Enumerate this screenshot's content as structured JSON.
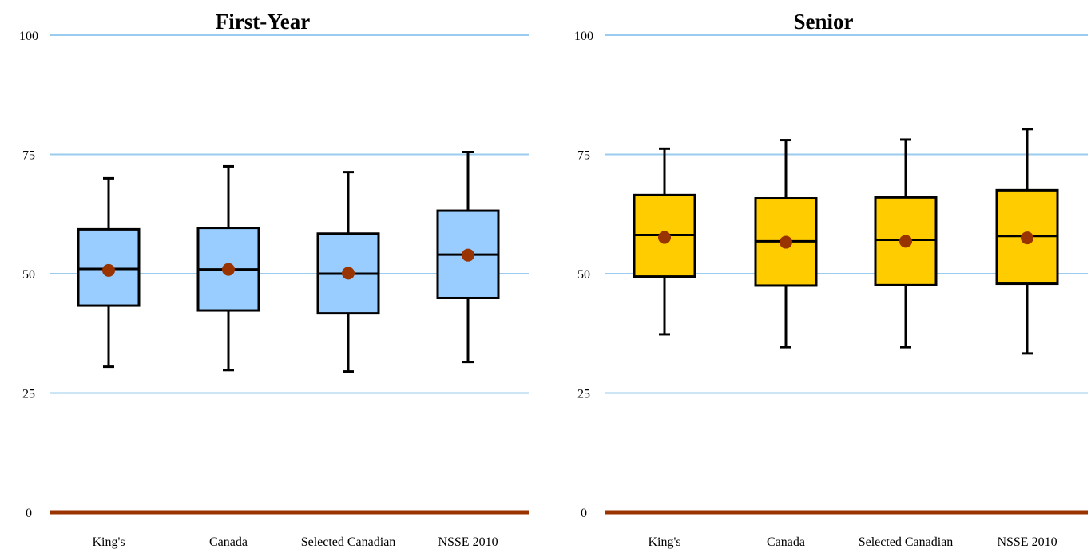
{
  "chart_data": [
    {
      "type": "box",
      "title": "First-Year",
      "categories": [
        "King's",
        "Canada",
        "Selected Canadian",
        "NSSE 2010"
      ],
      "ylim": [
        0,
        100
      ],
      "yticks": [
        0,
        25,
        50,
        75,
        100
      ],
      "grid": true,
      "colors": {
        "box_fill": "#99ccff",
        "box_stroke": "#000000",
        "mean_marker": "#993300",
        "gridline": "#99ccee",
        "baseline": "#993300"
      },
      "boxes": [
        {
          "category": "King's",
          "whisker_low": 30.5,
          "q1": 43.3,
          "median": 51.0,
          "q3": 59.3,
          "whisker_high": 70.0,
          "mean": 50.7
        },
        {
          "category": "Canada",
          "whisker_low": 29.8,
          "q1": 42.3,
          "median": 50.9,
          "q3": 59.6,
          "whisker_high": 72.5,
          "mean": 50.9
        },
        {
          "category": "Selected Canadian",
          "whisker_low": 29.5,
          "q1": 41.7,
          "median": 50.0,
          "q3": 58.4,
          "whisker_high": 71.3,
          "mean": 50.1
        },
        {
          "category": "NSSE 2010",
          "whisker_low": 31.5,
          "q1": 44.9,
          "median": 54.0,
          "q3": 63.2,
          "whisker_high": 75.5,
          "mean": 53.9
        }
      ]
    },
    {
      "type": "box",
      "title": "Senior",
      "categories": [
        "King's",
        "Canada",
        "Selected Canadian",
        "NSSE 2010"
      ],
      "ylim": [
        0,
        100
      ],
      "yticks": [
        0,
        25,
        50,
        75,
        100
      ],
      "grid": true,
      "colors": {
        "box_fill": "#ffcc00",
        "box_stroke": "#000000",
        "mean_marker": "#993300",
        "gridline": "#99ccee",
        "baseline": "#993300"
      },
      "boxes": [
        {
          "category": "King's",
          "whisker_low": 37.3,
          "q1": 49.4,
          "median": 58.1,
          "q3": 66.5,
          "whisker_high": 76.2,
          "mean": 57.6
        },
        {
          "category": "Canada",
          "whisker_low": 34.6,
          "q1": 47.5,
          "median": 56.8,
          "q3": 65.8,
          "whisker_high": 78.0,
          "mean": 56.6
        },
        {
          "category": "Selected Canadian",
          "whisker_low": 34.6,
          "q1": 47.6,
          "median": 57.1,
          "q3": 66.0,
          "whisker_high": 78.1,
          "mean": 56.8
        },
        {
          "category": "NSSE 2010",
          "whisker_low": 33.3,
          "q1": 47.9,
          "median": 57.9,
          "q3": 67.5,
          "whisker_high": 80.3,
          "mean": 57.5
        }
      ]
    }
  ]
}
